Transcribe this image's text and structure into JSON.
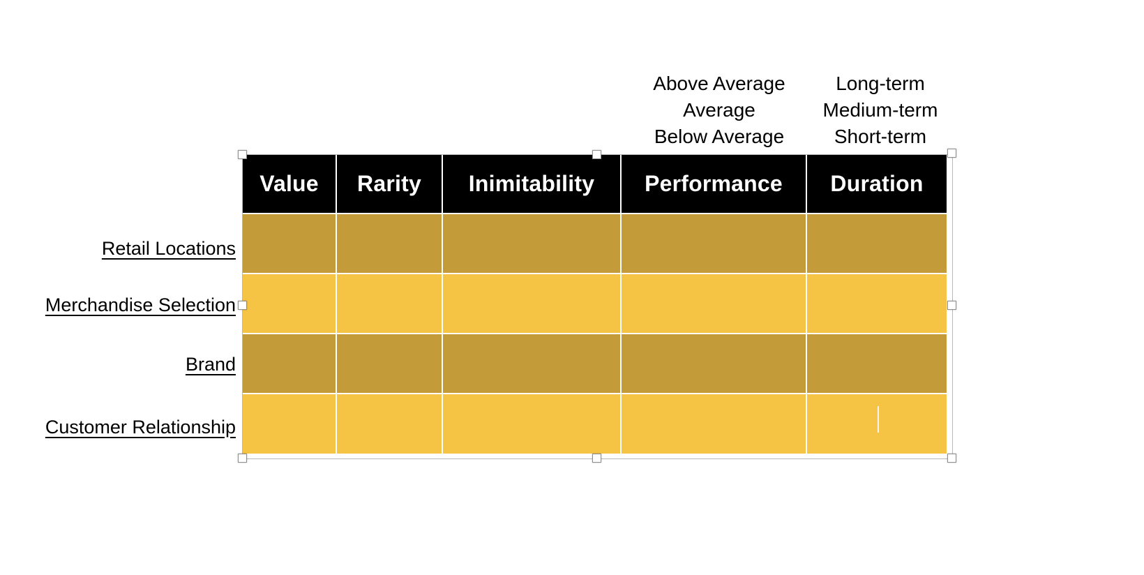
{
  "legend": {
    "performance": [
      "Above Average",
      "Average",
      "Below Average"
    ],
    "duration": [
      "Long-term",
      "Medium-term",
      "Short-term"
    ]
  },
  "table": {
    "headers": [
      "Value",
      "Rarity",
      "Inimitability",
      "Performance",
      "Duration"
    ],
    "row_labels": [
      "Retail Locations",
      "Merchandise Selection",
      "Brand",
      "Customer Relationship"
    ],
    "cell_values": [
      [
        "",
        "",
        "",
        "",
        ""
      ],
      [
        "",
        "",
        "",
        "",
        ""
      ],
      [
        "",
        "",
        "",
        "",
        ""
      ],
      [
        "",
        "",
        "",
        "",
        ""
      ]
    ],
    "colors": {
      "header_bg": "#000000",
      "header_text": "#ffffff",
      "row_dark_gold": "#c49b39",
      "row_light_gold": "#f6c445",
      "gridline": "#ffffff",
      "selection_frame": "#b9b9b9"
    }
  }
}
